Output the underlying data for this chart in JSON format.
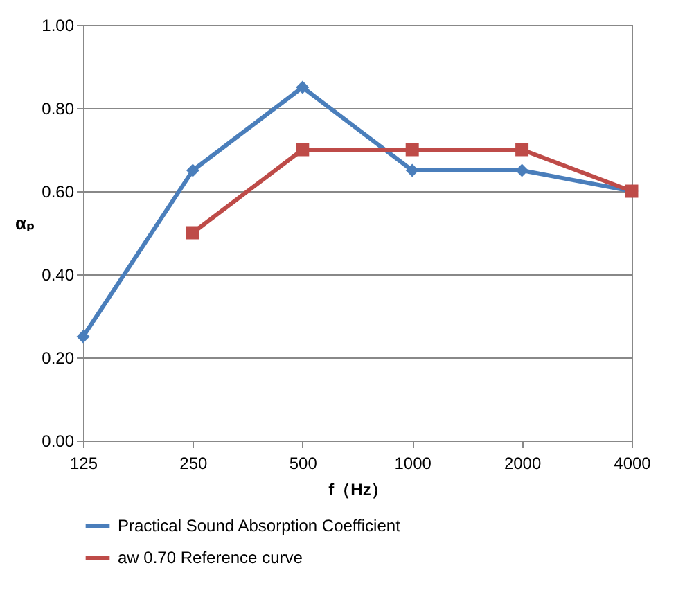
{
  "chart_data": {
    "type": "line",
    "xlabel": "f（Hz）",
    "ylabel": "αₚ",
    "categories": [
      "125",
      "250",
      "500",
      "1000",
      "2000",
      "4000"
    ],
    "series": [
      {
        "name": "Practical Sound Absorption Coefficient",
        "color": "#4a7ebb",
        "marker": "diamond",
        "values": [
          0.25,
          0.65,
          0.85,
          0.65,
          0.65,
          0.6
        ]
      },
      {
        "name": "aw 0.70 Reference curve",
        "color": "#be4b48",
        "marker": "square",
        "values": [
          null,
          0.5,
          0.7,
          0.7,
          0.7,
          0.6
        ]
      }
    ],
    "ylim": [
      0,
      1
    ],
    "yticks": [
      {
        "value": 0,
        "label": "0.00"
      },
      {
        "value": 0.2,
        "label": "0.20"
      },
      {
        "value": 0.4,
        "label": "0.40"
      },
      {
        "value": 0.6,
        "label": "0.60"
      },
      {
        "value": 0.8,
        "label": "0.80"
      },
      {
        "value": 1,
        "label": "1.00"
      }
    ],
    "grid": "y",
    "legend": "bottom",
    "line_style": "solid"
  }
}
